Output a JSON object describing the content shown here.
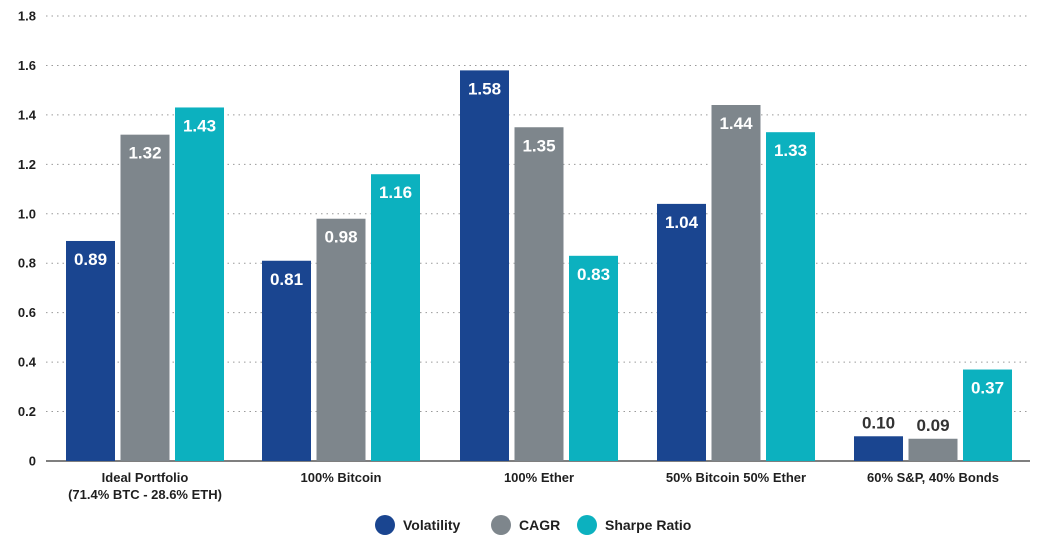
{
  "chart_data": {
    "type": "bar",
    "title": "",
    "xlabel": "",
    "ylabel": "",
    "ylim": [
      0,
      1.8
    ],
    "yticks": [
      "0",
      "0.2",
      "0.4",
      "0.6",
      "0.8",
      "1.0",
      "1.2",
      "1.4",
      "1.6",
      "1.8"
    ],
    "grid": true,
    "legend_position": "bottom-center",
    "categories": [
      [
        "Ideal Portfolio",
        "(71.4% BTC - 28.6% ETH)"
      ],
      [
        "100% Bitcoin"
      ],
      [
        "100% Ether"
      ],
      [
        "50% Bitcoin 50% Ether"
      ],
      [
        "60% S&P, 40% Bonds"
      ]
    ],
    "series": [
      {
        "name": "Volatility",
        "color": "#1a4590",
        "values": [
          0.89,
          0.81,
          1.58,
          1.04,
          0.1
        ],
        "labels": [
          "0.89",
          "0.81",
          "1.58",
          "1.04",
          "0.10"
        ]
      },
      {
        "name": "CAGR",
        "color": "#7e868c",
        "values": [
          1.32,
          0.98,
          1.35,
          1.44,
          0.09
        ],
        "labels": [
          "1.32",
          "0.98",
          "1.35",
          "1.44",
          "0.09"
        ]
      },
      {
        "name": "Sharpe Ratio",
        "color": "#0cb1bf",
        "values": [
          1.43,
          1.16,
          0.83,
          1.33,
          0.37
        ],
        "labels": [
          "1.43",
          "1.16",
          "0.83",
          "1.33",
          "0.37"
        ]
      }
    ]
  }
}
